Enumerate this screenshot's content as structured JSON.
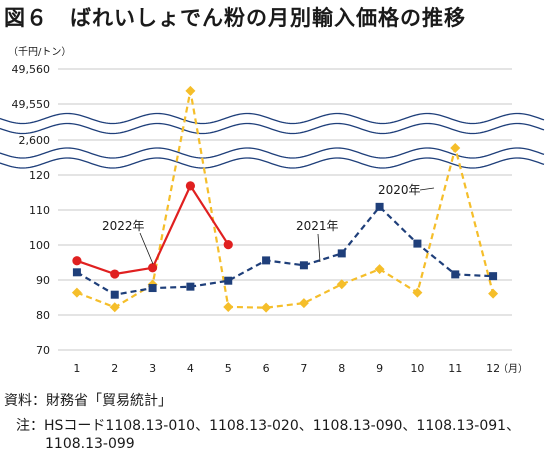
{
  "figure": {
    "title": "図６　ばれいしょでん粉の月別輸入価格の推移"
  },
  "chart_data": {
    "type": "line",
    "unit_label": "（千円/トン）",
    "x_unit": "（月）",
    "categories": [
      "1",
      "2",
      "3",
      "4",
      "5",
      "6",
      "7",
      "8",
      "9",
      "10",
      "11",
      "12"
    ],
    "y_ticks": [
      "49,560",
      "49,550",
      "2,600",
      "120",
      "110",
      "100",
      "90",
      "80",
      "70"
    ],
    "ylim": [
      70,
      120
    ],
    "axis_breaks": 2,
    "grid": true,
    "series": [
      {
        "name": "2022年",
        "color": "#e02020",
        "style": "solid",
        "marker": "circle",
        "values": [
          95.5,
          91.7,
          93.5,
          116.9,
          100.1,
          null,
          null,
          null,
          null,
          null,
          null,
          null
        ]
      },
      {
        "name": "2021年",
        "color": "#1f3f7a",
        "style": "dashed",
        "marker": "square",
        "values": [
          92.2,
          85.8,
          87.7,
          88.1,
          89.8,
          95.6,
          94.2,
          97.6,
          110.9,
          100.4,
          91.6,
          91.1
        ]
      },
      {
        "name": "2020年",
        "color": "#f5be2a",
        "style": "dashed",
        "marker": "diamond",
        "values": [
          86.4,
          82.2,
          88.7,
          49553,
          82.3,
          82.1,
          83.4,
          88.8,
          93.1,
          86.4,
          2595,
          86.1
        ]
      }
    ]
  },
  "footer": {
    "source": "資料：財務省「貿易統計」",
    "note_line1": "注：HSコード1108.13-010、1108.13-020、1108.13-090、1108.13-091、",
    "note_line2": "1108.13-099"
  }
}
